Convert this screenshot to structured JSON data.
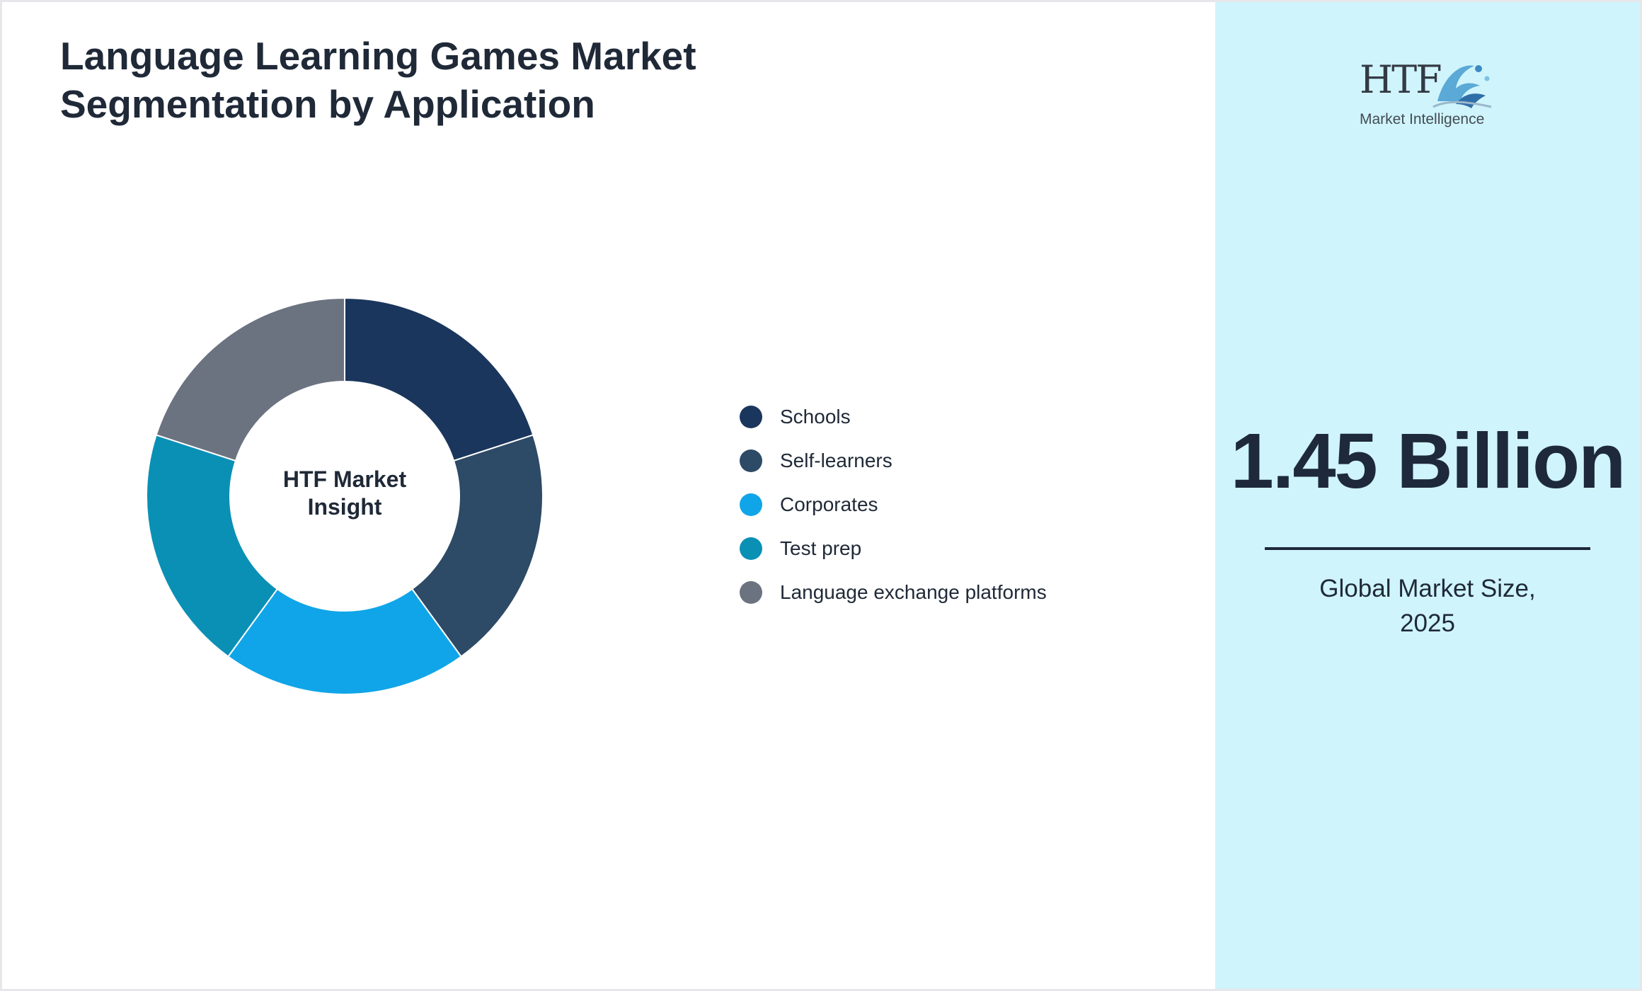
{
  "title": {
    "line1": "Language Learning Games Market",
    "line2": "Segmentation by Application"
  },
  "chart_data": {
    "type": "pie",
    "variant": "donut",
    "title": "Language Learning Games Market Segmentation by Application",
    "center_label": [
      "HTF Market",
      "Insight"
    ],
    "legend_position": "right",
    "categories": [
      "Schools",
      "Self-learners",
      "Corporates",
      "Test prep",
      "Language exchange platforms"
    ],
    "values": [
      20,
      20,
      20,
      20,
      20
    ],
    "colors": [
      "#1b365d",
      "#2d4a66",
      "#10a5e8",
      "#0a90b5",
      "#6b7280"
    ]
  },
  "logo": {
    "mark": "HTF",
    "subtitle": "Market Intelligence"
  },
  "highlight": {
    "value": "1.45",
    "unit": "Billion",
    "caption_line1": "Global Market Size,",
    "caption_line2": "2025"
  },
  "theme": {
    "side_panel": "#cff4fb",
    "text_dark": "#1e293b"
  }
}
